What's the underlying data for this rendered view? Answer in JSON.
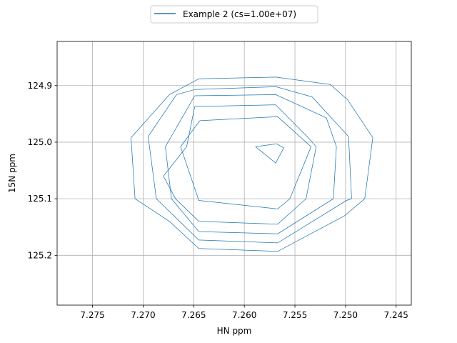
{
  "chart_data": {
    "type": "contour",
    "xlabel": "HN ppm",
    "ylabel": "15N ppm",
    "xlim": [
      7.2785,
      7.2435
    ],
    "ylim": [
      125.288,
      124.822
    ],
    "x_ticks": [
      "7.275",
      "7.270",
      "7.265",
      "7.260",
      "7.255",
      "7.250",
      "7.245"
    ],
    "x_tick_values": [
      7.275,
      7.27,
      7.265,
      7.26,
      7.255,
      7.25,
      7.245
    ],
    "y_ticks": [
      "124.9",
      "125.0",
      "125.1",
      "125.2"
    ],
    "y_tick_values": [
      124.9,
      125.0,
      125.1,
      125.2
    ],
    "grid": true,
    "legend": {
      "position": "top-center",
      "entries": [
        "Example 2 (cs=1.00e+07)"
      ]
    },
    "series": [
      {
        "name": "Example 2 (cs=1.00e+07)",
        "color": "#1f77b4",
        "contours": [
          [
            [
              7.2645,
              124.888
            ],
            [
              7.2569,
              124.885
            ],
            [
              7.2515,
              124.898
            ],
            [
              7.2498,
              124.925
            ],
            [
              7.2473,
              124.992
            ],
            [
              7.2481,
              125.1
            ],
            [
              7.2501,
              125.13
            ],
            [
              7.2567,
              125.193
            ],
            [
              7.2645,
              125.188
            ],
            [
              7.2674,
              125.14
            ],
            [
              7.2708,
              125.1
            ],
            [
              7.2712,
              124.992
            ],
            [
              7.2674,
              124.916
            ],
            [
              7.2645,
              124.888
            ]
          ],
          [
            [
              7.2649,
              124.907
            ],
            [
              7.2569,
              124.902
            ],
            [
              7.2533,
              124.92
            ],
            [
              7.2497,
              124.99
            ],
            [
              7.2494,
              125.1
            ],
            [
              7.2499,
              125.103
            ],
            [
              7.2567,
              125.178
            ],
            [
              7.2645,
              125.173
            ],
            [
              7.2687,
              125.1
            ],
            [
              7.2695,
              124.99
            ],
            [
              7.2667,
              124.916
            ],
            [
              7.2649,
              124.907
            ]
          ],
          [
            [
              7.2649,
              124.918
            ],
            [
              7.2569,
              124.916
            ],
            [
              7.2519,
              124.957
            ],
            [
              7.2509,
              125.008
            ],
            [
              7.2512,
              125.1
            ],
            [
              7.2567,
              125.162
            ],
            [
              7.2645,
              125.158
            ],
            [
              7.2672,
              125.1
            ],
            [
              7.2678,
              125.008
            ],
            [
              7.2649,
              124.918
            ]
          ],
          [
            [
              7.2649,
              124.937
            ],
            [
              7.2569,
              124.934
            ],
            [
              7.2538,
              124.99
            ],
            [
              7.2529,
              125.008
            ],
            [
              7.2539,
              125.1
            ],
            [
              7.2567,
              125.145
            ],
            [
              7.2645,
              125.14
            ],
            [
              7.2668,
              125.1
            ],
            [
              7.268,
              125.06
            ],
            [
              7.2657,
              125.008
            ],
            [
              7.2649,
              124.937
            ]
          ],
          [
            [
              7.2644,
              124.962
            ],
            [
              7.2567,
              124.955
            ],
            [
              7.2534,
              125.008
            ],
            [
              7.2555,
              125.1
            ],
            [
              7.2567,
              125.118
            ],
            [
              7.2645,
              125.103
            ],
            [
              7.2663,
              125.008
            ],
            [
              7.2644,
              124.962
            ]
          ],
          [
            [
              7.2589,
              125.008
            ],
            [
              7.2568,
              125.003
            ],
            [
              7.2561,
              125.01
            ],
            [
              7.2569,
              125.037
            ],
            [
              7.2589,
              125.008
            ]
          ]
        ]
      }
    ]
  }
}
